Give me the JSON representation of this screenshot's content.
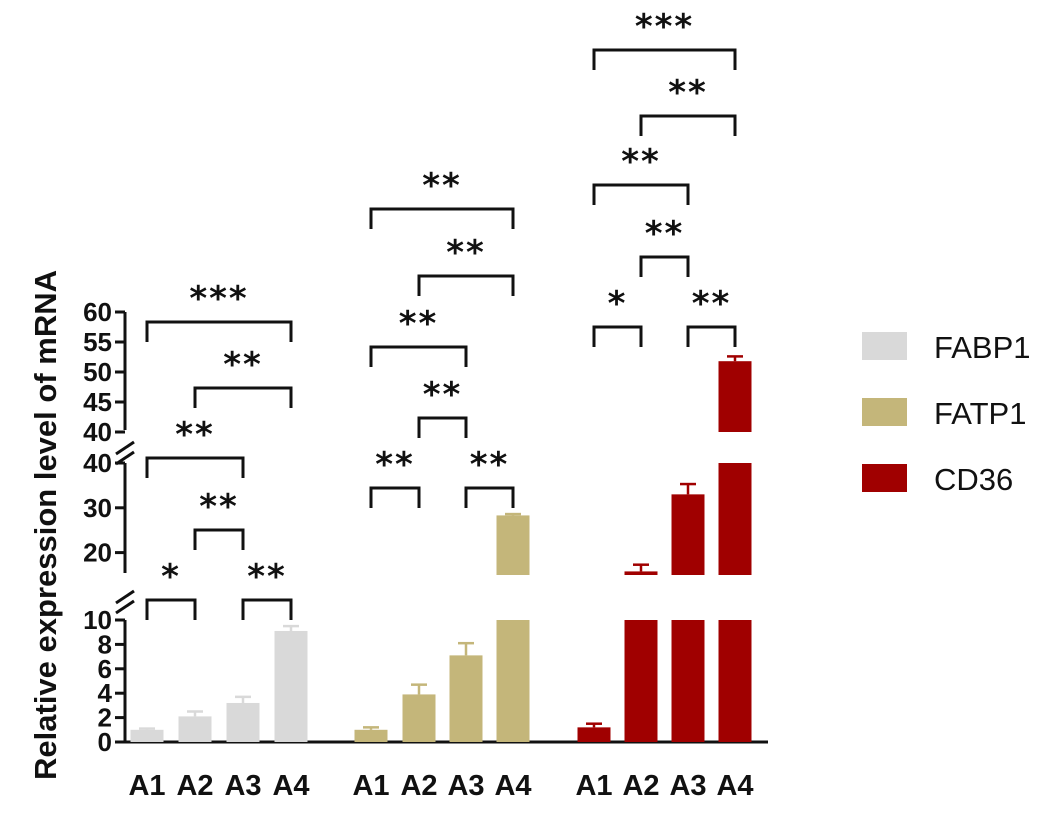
{
  "chart_data": {
    "type": "bar",
    "ylabel": "Relative expression level of mRNA",
    "categories": [
      "A1",
      "A2",
      "A3",
      "A4"
    ],
    "y_axis_segments": [
      {
        "range": [
          0,
          10
        ],
        "ticks": [
          "0",
          "2",
          "4",
          "6",
          "8",
          "10"
        ]
      },
      {
        "range": [
          15,
          40
        ],
        "ticks": [
          "20",
          "30",
          "40"
        ]
      },
      {
        "range": [
          40,
          60
        ],
        "ticks": [
          "40",
          "45",
          "50",
          "55",
          "60"
        ]
      }
    ],
    "colors": {
      "FABP1": "#d9d9d9",
      "FATP1": "#c4b67a",
      "CD36": "#a00000"
    },
    "series": [
      {
        "name": "FABP1",
        "values": [
          1.0,
          2.1,
          3.2,
          9.1
        ],
        "errors": [
          0.1,
          0.4,
          0.5,
          0.4
        ]
      },
      {
        "name": "FATP1",
        "values": [
          1.0,
          3.9,
          7.1,
          28.3
        ],
        "errors": [
          0.2,
          0.8,
          1.0,
          0.3
        ]
      },
      {
        "name": "CD36",
        "values": [
          1.2,
          15.8,
          33.0,
          51.8
        ],
        "errors": [
          0.3,
          1.5,
          2.3,
          0.8
        ]
      }
    ],
    "significance": [
      {
        "group": "FABP1",
        "pairs": [
          {
            "from": 0,
            "to": 1,
            "label": "*"
          },
          {
            "from": 2,
            "to": 3,
            "label": "**"
          },
          {
            "from": 1,
            "to": 2,
            "label": "**"
          },
          {
            "from": 0,
            "to": 2,
            "label": "**"
          },
          {
            "from": 1,
            "to": 3,
            "label": "**"
          },
          {
            "from": 0,
            "to": 3,
            "label": "***"
          }
        ]
      },
      {
        "group": "FATP1",
        "pairs": [
          {
            "from": 0,
            "to": 1,
            "label": "**"
          },
          {
            "from": 2,
            "to": 3,
            "label": "**"
          },
          {
            "from": 1,
            "to": 2,
            "label": "**"
          },
          {
            "from": 0,
            "to": 2,
            "label": "**"
          },
          {
            "from": 1,
            "to": 3,
            "label": "**"
          },
          {
            "from": 0,
            "to": 3,
            "label": "**"
          }
        ]
      },
      {
        "group": "CD36",
        "pairs": [
          {
            "from": 0,
            "to": 1,
            "label": "*"
          },
          {
            "from": 2,
            "to": 3,
            "label": "**"
          },
          {
            "from": 1,
            "to": 2,
            "label": "**"
          },
          {
            "from": 0,
            "to": 2,
            "label": "**"
          },
          {
            "from": 1,
            "to": 3,
            "label": "**"
          },
          {
            "from": 0,
            "to": 3,
            "label": "***"
          }
        ]
      }
    ],
    "legend": {
      "position": "right",
      "entries": [
        "FABP1",
        "FATP1",
        "CD36"
      ]
    }
  }
}
